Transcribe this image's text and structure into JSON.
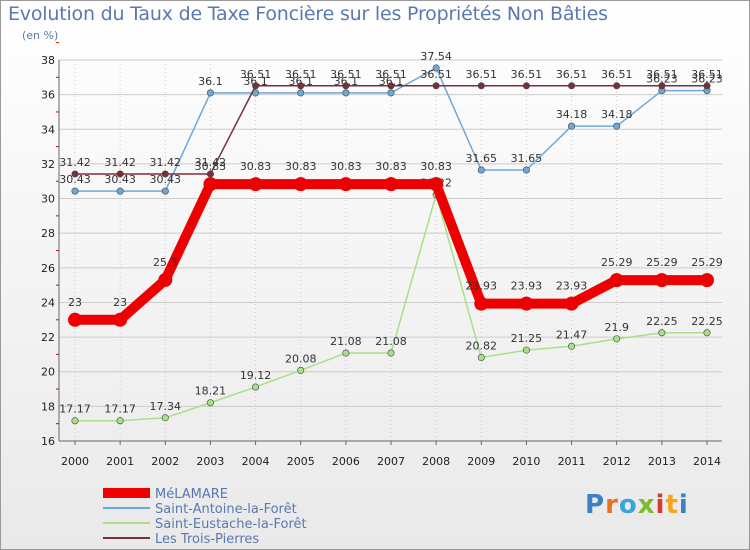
{
  "title": "Evolution du Taux de Taxe Foncière sur les Propriétés Non Bâties",
  "unit_label": "(en %)",
  "logo_text": "Proxiti",
  "colors": {
    "grid": "#cccccc",
    "axis": "#666666",
    "title": "#5b78b0"
  },
  "chart_data": {
    "type": "line",
    "title": "Evolution du Taux de Taxe Foncière sur les Propriétés Non Bâties",
    "ylabel": "(en %)",
    "xlabel": "",
    "x": [
      "2000",
      "2001",
      "2002",
      "2003",
      "2004",
      "2005",
      "2006",
      "2007",
      "2008",
      "2009",
      "2010",
      "2011",
      "2012",
      "2013",
      "2014"
    ],
    "ylim": [
      16,
      38
    ],
    "yticks": [
      16,
      18,
      20,
      22,
      24,
      26,
      28,
      30,
      32,
      34,
      36,
      38
    ],
    "grid": true,
    "legend_position": "bottom-left",
    "series": [
      {
        "name": "MéLAMARE",
        "color": "#ee0000",
        "values": [
          23,
          23,
          25.3,
          30.83,
          30.83,
          30.83,
          30.83,
          30.83,
          30.83,
          23.93,
          23.93,
          23.93,
          25.29,
          25.29,
          25.29
        ],
        "labels": [
          "23",
          "23",
          "25.3",
          "30.83",
          "30.83",
          "30.83",
          "30.83",
          "30.83",
          "30.83",
          "23.93",
          "23.93",
          "23.93",
          "25.29",
          "25.29",
          "25.29"
        ]
      },
      {
        "name": "Saint-Antoine-la-Forêt",
        "color": "#6fa8d8",
        "values": [
          30.43,
          30.43,
          30.43,
          36.1,
          36.1,
          36.1,
          36.1,
          36.1,
          37.54,
          31.65,
          31.65,
          34.18,
          34.18,
          36.23,
          36.23
        ],
        "labels": [
          "30.43",
          "30.43",
          "30.43",
          "36.1",
          "36.1",
          "36.1",
          "36.1",
          "36.1",
          "37.54",
          "31.65",
          "31.65",
          "34.18",
          "34.18",
          "36.23",
          "36.23"
        ]
      },
      {
        "name": "Saint-Eustache-la-Forêt",
        "color": "#a8e088",
        "values": [
          17.17,
          17.17,
          17.34,
          18.21,
          19.12,
          20.08,
          21.08,
          21.08,
          30.22,
          20.82,
          21.25,
          21.47,
          21.9,
          22.25,
          22.25
        ],
        "labels": [
          "17.17",
          "17.17",
          "17.34",
          "18.21",
          "19.12",
          "20.08",
          "21.08",
          "21.08",
          "30.22",
          "20.82",
          "21.25",
          "21.47",
          "21.9",
          "22.25",
          "22.25"
        ]
      },
      {
        "name": "Les Trois-Pierres",
        "color": "#7a3038",
        "values": [
          31.42,
          31.42,
          31.42,
          31.42,
          36.51,
          36.51,
          36.51,
          36.51,
          36.51,
          36.51,
          36.51,
          36.51,
          36.51,
          36.51,
          36.51
        ],
        "labels": [
          "31.42",
          "31.42",
          "31.42",
          "31.42",
          "36.51",
          "36.51",
          "36.51",
          "36.51",
          "36.51",
          "36.51",
          "36.51",
          "36.51",
          "36.51",
          "36.51",
          "36.51"
        ]
      }
    ]
  }
}
